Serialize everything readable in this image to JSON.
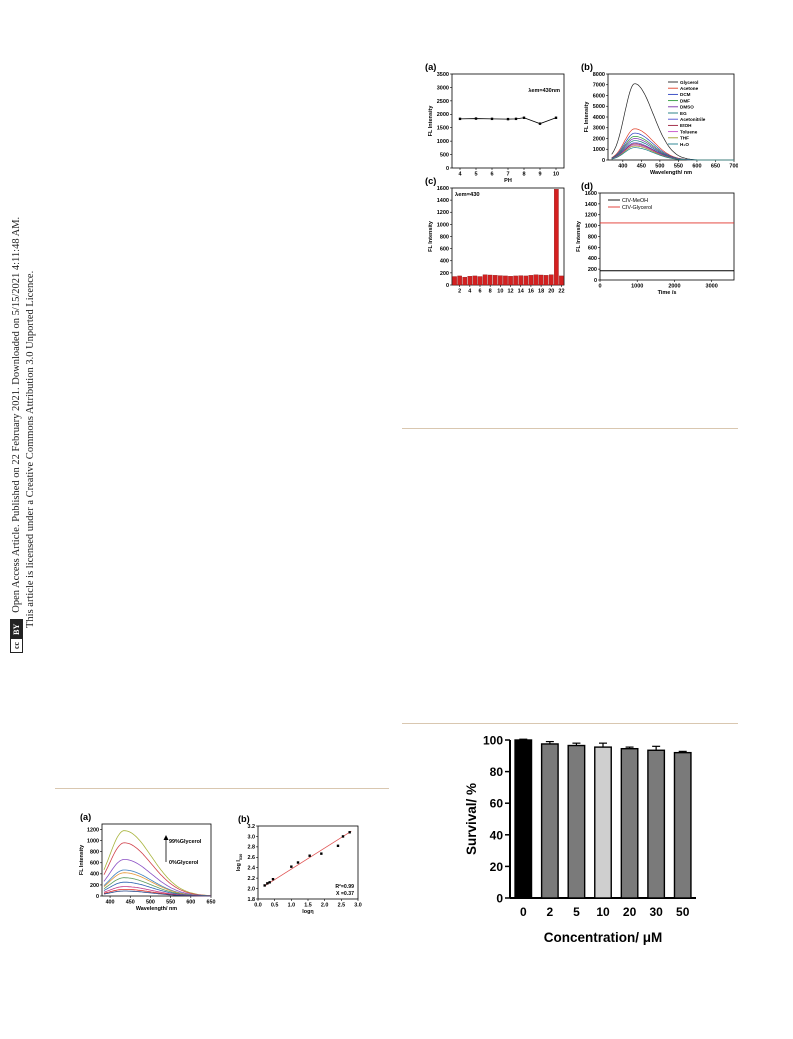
{
  "side_notice": {
    "line1": "Open Access Article. Published on 22 February 2021. Downloaded on 5/15/2021 4:11:48 AM.",
    "line2": "This article is licensed under a Creative Commons Attribution 3.0 Unported Licence.",
    "cc_badge": "cc",
    "by_badge": "BY"
  },
  "chart_data": [
    {
      "id": "top-a",
      "panel_label": "(a)",
      "type": "line",
      "xlabel": "PH",
      "ylabel": "FL Intensity",
      "annotation": "λem=430nm",
      "xlim": [
        3.5,
        10.5
      ],
      "ylim": [
        0,
        3500
      ],
      "xticks": [
        4,
        5,
        6,
        7,
        8,
        9,
        10
      ],
      "yticks": [
        0,
        500,
        1000,
        1500,
        2000,
        2500,
        3000,
        3500
      ],
      "x": [
        4,
        5,
        6,
        7,
        7.5,
        8,
        9,
        10
      ],
      "y": [
        1830,
        1840,
        1830,
        1820,
        1830,
        1870,
        1650,
        1870
      ],
      "color": "#000000"
    },
    {
      "id": "top-b",
      "panel_label": "(b)",
      "type": "line",
      "xlabel": "Wavelength/ nm",
      "ylabel": "FL Intensity",
      "xlim": [
        360,
        700
      ],
      "ylim": [
        0,
        8000
      ],
      "xticks": [
        400,
        450,
        500,
        550,
        600,
        650,
        700
      ],
      "yticks": [
        0,
        1000,
        2000,
        3000,
        4000,
        5000,
        6000,
        7000,
        8000
      ],
      "legend_position": "top-right",
      "series": [
        {
          "name": "Glycerol",
          "color": "#222222",
          "peak": 7100
        },
        {
          "name": "Acetone",
          "color": "#e0402a",
          "peak": 2900
        },
        {
          "name": "DCM",
          "color": "#2a3fc0",
          "peak": 2500
        },
        {
          "name": "DMF",
          "color": "#2f9b3a",
          "peak": 2200
        },
        {
          "name": "DMSO",
          "color": "#7a2fa8",
          "peak": 2000
        },
        {
          "name": "EG",
          "color": "#16787e",
          "peak": 1800
        },
        {
          "name": "Acetonitrile",
          "color": "#4d4dd1",
          "peak": 1600
        },
        {
          "name": "EtOH",
          "color": "#9b1c3a",
          "peak": 1500
        },
        {
          "name": "Toluene",
          "color": "#c64fc9",
          "peak": 1400
        },
        {
          "name": "THF",
          "color": "#9a9a2a",
          "peak": 1300
        },
        {
          "name": "H₂O",
          "color": "#1c7c8c",
          "peak": 1150
        }
      ]
    },
    {
      "id": "top-c",
      "panel_label": "(c)",
      "type": "bar",
      "xlabel": "",
      "ylabel": "FL Intensity",
      "annotation": "λem=430",
      "xlim": [
        0.5,
        22.5
      ],
      "ylim": [
        0,
        1600
      ],
      "xticks": [
        2,
        4,
        6,
        8,
        10,
        12,
        14,
        16,
        18,
        20,
        22
      ],
      "yticks": [
        0,
        200,
        400,
        600,
        800,
        1000,
        1200,
        1400,
        1600
      ],
      "categories": [
        1,
        2,
        3,
        4,
        5,
        6,
        7,
        8,
        9,
        10,
        11,
        12,
        13,
        14,
        15,
        16,
        16.5,
        17,
        18,
        19,
        20,
        21
      ],
      "values": [
        140,
        150,
        130,
        145,
        150,
        140,
        170,
        165,
        160,
        155,
        150,
        145,
        150,
        155,
        150,
        160,
        170,
        165,
        160,
        170,
        1580,
        150
      ],
      "color": "#d42020"
    },
    {
      "id": "top-d",
      "panel_label": "(d)",
      "type": "line",
      "xlabel": "Time /s",
      "ylabel": "FL Intensity",
      "xlim": [
        0,
        3600
      ],
      "ylim": [
        0,
        1600
      ],
      "xticks": [
        0,
        1000,
        2000,
        3000
      ],
      "yticks": [
        0,
        200,
        400,
        600,
        800,
        1000,
        1200,
        1400,
        1600
      ],
      "legend_position": "top-left",
      "series": [
        {
          "name": "CIV-MeOH",
          "color": "#000000",
          "values": [
            170,
            170
          ]
        },
        {
          "name": "CIV-Glycerol",
          "color": "#e0302a",
          "values": [
            1050,
            1050
          ]
        }
      ]
    },
    {
      "id": "bottom-a",
      "panel_label": "(a)",
      "type": "line",
      "xlabel": "Wavelength/ nm",
      "ylabel": "FL Intensity",
      "xlim": [
        380,
        650
      ],
      "ylim": [
        0,
        1300
      ],
      "xticks": [
        400,
        450,
        500,
        550,
        600,
        650
      ],
      "yticks": [
        0,
        200,
        400,
        600,
        800,
        1000,
        1200
      ],
      "annotation_top": "99%Glycerol",
      "annotation_bottom": "0%Glycerol",
      "series": [
        {
          "color": "#a8b43c",
          "peak": 1180
        },
        {
          "color": "#d0404a",
          "peak": 960
        },
        {
          "color": "#8a4fc4",
          "peak": 660
        },
        {
          "color": "#3e7fc0",
          "peak": 470
        },
        {
          "color": "#e39a3a",
          "peak": 420
        },
        {
          "color": "#5a9a5a",
          "peak": 330
        },
        {
          "color": "#2a5fb0",
          "peak": 250
        },
        {
          "color": "#c03a8a",
          "peak": 170
        },
        {
          "color": "#e0302a",
          "peak": 120
        },
        {
          "color": "#224488",
          "peak": 90
        }
      ]
    },
    {
      "id": "bottom-b",
      "panel_label": "(b)",
      "type": "scatter",
      "xlabel": "logη",
      "ylabel": "log I",
      "ylabel_sub": "530",
      "xlim": [
        0,
        3.0
      ],
      "ylim": [
        1.8,
        3.2
      ],
      "xticks": [
        0.0,
        0.5,
        1.0,
        1.5,
        2.0,
        2.5,
        3.0
      ],
      "yticks": [
        1.8,
        2.0,
        2.2,
        2.4,
        2.6,
        2.8,
        3.0,
        3.2
      ],
      "x": [
        0.2,
        0.28,
        0.35,
        0.45,
        1.0,
        1.2,
        1.55,
        1.9,
        2.4,
        2.55,
        2.75
      ],
      "y": [
        2.06,
        2.1,
        2.12,
        2.18,
        2.42,
        2.5,
        2.63,
        2.67,
        2.82,
        3.0,
        3.08
      ],
      "fit_line": [
        [
          0.2,
          2.05
        ],
        [
          2.8,
          3.1
        ]
      ],
      "fit_color": "#e05050",
      "r2_label": "R²=0.99",
      "x_label": "X =0.37"
    },
    {
      "id": "survival",
      "panel_label": "",
      "type": "bar",
      "xlabel": "Concentration/ μM",
      "ylabel": "Survival/ %",
      "ylim": [
        0,
        100
      ],
      "yticks": [
        0,
        20,
        40,
        60,
        80,
        100
      ],
      "categories": [
        "0",
        "2",
        "5",
        "10",
        "20",
        "30",
        "50"
      ],
      "values": [
        100,
        97.5,
        96.5,
        95.5,
        94.5,
        93.5,
        92
      ],
      "errors": [
        0.5,
        1.5,
        1.5,
        2.5,
        1.0,
        2.5,
        0.8
      ],
      "colors": [
        "#000000",
        "#7a7a7a",
        "#7a7a7a",
        "#cfcfcf",
        "#7a7a7a",
        "#7a7a7a",
        "#7a7a7a"
      ]
    }
  ]
}
